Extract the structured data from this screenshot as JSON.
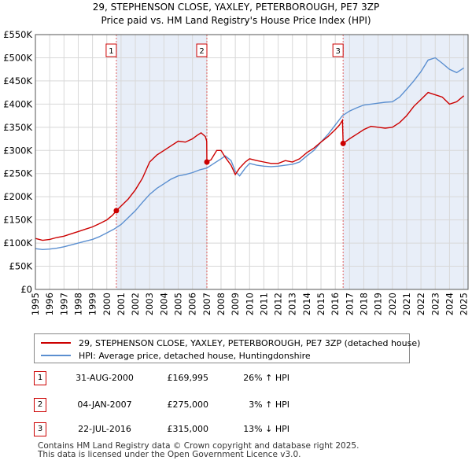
{
  "chart_data": {
    "type": "line",
    "title": "29, STEPHENSON CLOSE, YAXLEY, PETERBOROUGH, PE7 3ZP",
    "subtitle": "Price paid vs. HM Land Registry's House Price Index (HPI)",
    "xlabel": "",
    "ylabel": "",
    "xlim": [
      1995,
      2025.3
    ],
    "ylim": [
      0,
      550000
    ],
    "x_ticks": [
      "1995",
      "1996",
      "1997",
      "1998",
      "1999",
      "2000",
      "2001",
      "2002",
      "2003",
      "2004",
      "2005",
      "2006",
      "2007",
      "2008",
      "2009",
      "2010",
      "2011",
      "2012",
      "2013",
      "2014",
      "2015",
      "2016",
      "2017",
      "2018",
      "2019",
      "2020",
      "2021",
      "2022",
      "2023",
      "2024",
      "2025"
    ],
    "y_ticks": [
      {
        "v": 0,
        "label": "£0"
      },
      {
        "v": 50000,
        "label": "£50K"
      },
      {
        "v": 100000,
        "label": "£100K"
      },
      {
        "v": 150000,
        "label": "£150K"
      },
      {
        "v": 200000,
        "label": "£200K"
      },
      {
        "v": 250000,
        "label": "£250K"
      },
      {
        "v": 300000,
        "label": "£300K"
      },
      {
        "v": 350000,
        "label": "£350K"
      },
      {
        "v": 400000,
        "label": "£400K"
      },
      {
        "v": 450000,
        "label": "£450K"
      },
      {
        "v": 500000,
        "label": "£500K"
      },
      {
        "v": 550000,
        "label": "£550K"
      }
    ],
    "shaded_periods": [
      [
        2000.67,
        2007.01
      ],
      [
        2016.55,
        2025.3
      ]
    ],
    "series": [
      {
        "name": "29, STEPHENSON CLOSE, YAXLEY, PETERBOROUGH, PE7 3ZP (detached house)",
        "color": "#cc0000",
        "x": [
          1995.0,
          1995.5,
          1996.0,
          1996.5,
          1997.0,
          1997.5,
          1998.0,
          1998.5,
          1999.0,
          1999.5,
          2000.0,
          2000.4,
          2000.67,
          2001.0,
          2001.5,
          2002.0,
          2002.5,
          2003.0,
          2003.5,
          2004.0,
          2004.5,
          2005.0,
          2005.5,
          2006.0,
          2006.3,
          2006.6,
          2006.9,
          2007.0,
          2007.01,
          2007.3,
          2007.7,
          2008.0,
          2008.3,
          2008.7,
          2009.0,
          2009.3,
          2009.7,
          2010.0,
          2010.5,
          2011.0,
          2011.5,
          2012.0,
          2012.5,
          2013.0,
          2013.5,
          2014.0,
          2014.5,
          2015.0,
          2015.5,
          2016.0,
          2016.3,
          2016.5,
          2016.55,
          2017.0,
          2017.5,
          2018.0,
          2018.5,
          2019.0,
          2019.5,
          2020.0,
          2020.5,
          2021.0,
          2021.5,
          2022.0,
          2022.5,
          2023.0,
          2023.5,
          2024.0,
          2024.5,
          2025.0
        ],
        "values": [
          110000,
          106000,
          108000,
          112000,
          115000,
          120000,
          125000,
          130000,
          135000,
          142000,
          150000,
          160000,
          169995,
          180000,
          195000,
          215000,
          240000,
          275000,
          290000,
          300000,
          310000,
          320000,
          318000,
          325000,
          332000,
          338000,
          330000,
          320000,
          275000,
          280000,
          300000,
          300000,
          285000,
          268000,
          248000,
          262000,
          275000,
          282000,
          278000,
          275000,
          272000,
          272000,
          278000,
          275000,
          282000,
          295000,
          305000,
          318000,
          330000,
          345000,
          355000,
          365000,
          315000,
          325000,
          335000,
          345000,
          352000,
          350000,
          348000,
          350000,
          360000,
          375000,
          395000,
          410000,
          425000,
          420000,
          415000,
          400000,
          405000,
          418000
        ]
      },
      {
        "name": "HPI: Average price, detached house, Huntingdonshire",
        "color": "#5b8fd0",
        "x": [
          1995.0,
          1995.5,
          1996.0,
          1996.5,
          1997.0,
          1997.5,
          1998.0,
          1998.5,
          1999.0,
          1999.5,
          2000.0,
          2000.5,
          2001.0,
          2001.5,
          2002.0,
          2002.5,
          2003.0,
          2003.5,
          2004.0,
          2004.5,
          2005.0,
          2005.5,
          2006.0,
          2006.5,
          2007.0,
          2007.5,
          2008.0,
          2008.3,
          2008.7,
          2009.0,
          2009.3,
          2009.7,
          2010.0,
          2010.5,
          2011.0,
          2011.5,
          2012.0,
          2012.5,
          2013.0,
          2013.5,
          2014.0,
          2014.5,
          2015.0,
          2015.5,
          2016.0,
          2016.5,
          2017.0,
          2017.5,
          2018.0,
          2018.5,
          2019.0,
          2019.5,
          2020.0,
          2020.5,
          2021.0,
          2021.5,
          2022.0,
          2022.5,
          2023.0,
          2023.5,
          2024.0,
          2024.5,
          2025.0
        ],
        "values": [
          88000,
          86000,
          87000,
          89000,
          92000,
          96000,
          100000,
          104000,
          108000,
          114000,
          122000,
          130000,
          140000,
          155000,
          170000,
          188000,
          205000,
          218000,
          228000,
          238000,
          245000,
          248000,
          252000,
          258000,
          262000,
          272000,
          282000,
          288000,
          278000,
          255000,
          245000,
          262000,
          272000,
          268000,
          266000,
          265000,
          266000,
          268000,
          270000,
          275000,
          288000,
          300000,
          318000,
          335000,
          355000,
          375000,
          385000,
          392000,
          398000,
          400000,
          402000,
          404000,
          405000,
          415000,
          432000,
          450000,
          470000,
          495000,
          500000,
          488000,
          475000,
          468000,
          478000
        ]
      }
    ],
    "sales": [
      {
        "label": "1",
        "x": 2000.67,
        "y": 169995
      },
      {
        "label": "2",
        "x": 2007.01,
        "y": 275000
      },
      {
        "label": "3",
        "x": 2016.55,
        "y": 315000
      }
    ]
  },
  "legend": {
    "property": "29, STEPHENSON CLOSE, YAXLEY, PETERBOROUGH, PE7 3ZP (detached house)",
    "hpi": "HPI: Average price, detached house, Huntingdonshire"
  },
  "sales_table": [
    {
      "num": "1",
      "date": "31-AUG-2000",
      "price": "£169,995",
      "hpi": "26% ↑ HPI"
    },
    {
      "num": "2",
      "date": "04-JAN-2007",
      "price": "£275,000",
      "hpi": "3% ↑ HPI"
    },
    {
      "num": "3",
      "date": "22-JUL-2016",
      "price": "£315,000",
      "hpi": "13% ↓ HPI"
    }
  ],
  "footer": {
    "line1": "Contains HM Land Registry data © Crown copyright and database right 2025.",
    "line2": "This data is licensed under the Open Government Licence v3.0."
  },
  "colors": {
    "property": "#cc0000",
    "hpi": "#5b8fd0",
    "shade": "#e8eef8"
  }
}
